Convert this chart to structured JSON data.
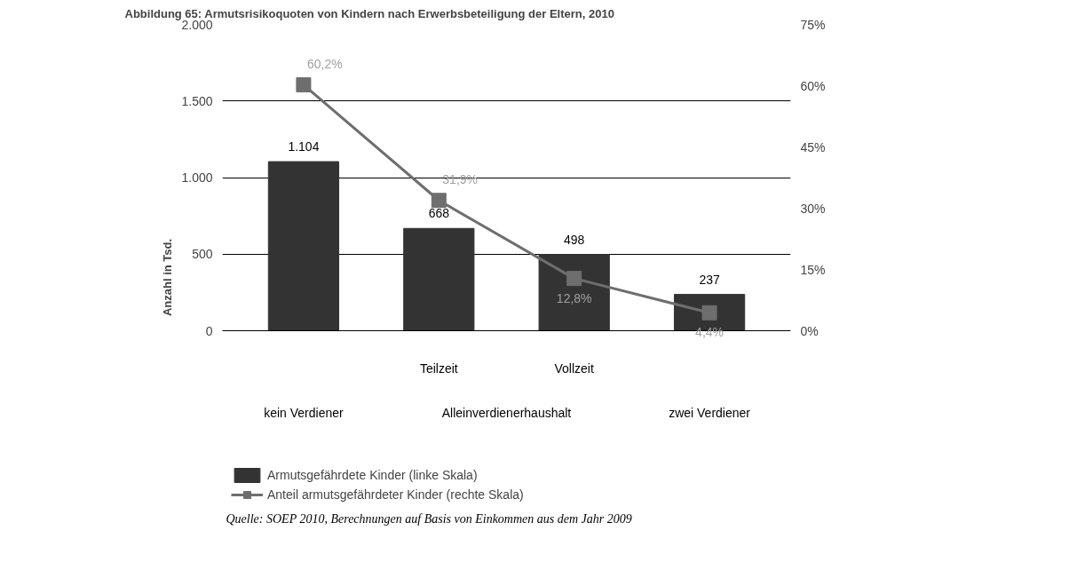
{
  "chart_data": {
    "type": "bar",
    "title": "Abbildung 65: Armutsrisikoquoten von Kindern nach Erwerbsbeteiligung der Eltern, 2010",
    "categories": [
      "kein Verdiener",
      "Teilzeit",
      "Vollzeit",
      "zwei Verdiener"
    ],
    "ylabel": "Anzahl in Tsd.",
    "ylim": [
      0,
      2000
    ],
    "yticks": [
      0,
      500,
      {
        "value": 1000,
        "label": "1.000"
      },
      {
        "value": 1500,
        "label": "1.500"
      },
      {
        "value": 2000,
        "label": "2.000"
      }
    ],
    "y2lim": [
      0,
      75
    ],
    "y2ticks": [
      {
        "value": 0,
        "label": "0%"
      },
      {
        "value": 15,
        "label": "15%"
      },
      {
        "value": 30,
        "label": "30%"
      },
      {
        "value": 45,
        "label": "45%"
      },
      {
        "value": 60,
        "label": "60%"
      },
      {
        "value": 75,
        "label": "75%"
      }
    ],
    "series": [
      {
        "name": "Armutsgefährdete Kinder (linke Skala)",
        "color": "#333333",
        "values": [
          1104,
          668,
          498,
          237
        ],
        "value_labels": [
          "1.104",
          "668",
          "498",
          "237"
        ]
      },
      {
        "name": "Anteil armutsgefährdeter Kinder (rechte Skala)",
        "type": "line",
        "axis": "y2",
        "color": "#6e6e6e",
        "marker": "square",
        "values": [
          60.2,
          31.9,
          12.8,
          4.4
        ],
        "value_labels": [
          "60,2%",
          "31,9%",
          "12,8%",
          "4,4%"
        ]
      }
    ],
    "annotations": [
      "Alleinverdienerhaushalt",
      "Quelle: SOEP 2010, Berechnungen auf Basis von Einkommen aus dem Jahr 2009"
    ],
    "grid": "y",
    "legend": "bottom left"
  }
}
